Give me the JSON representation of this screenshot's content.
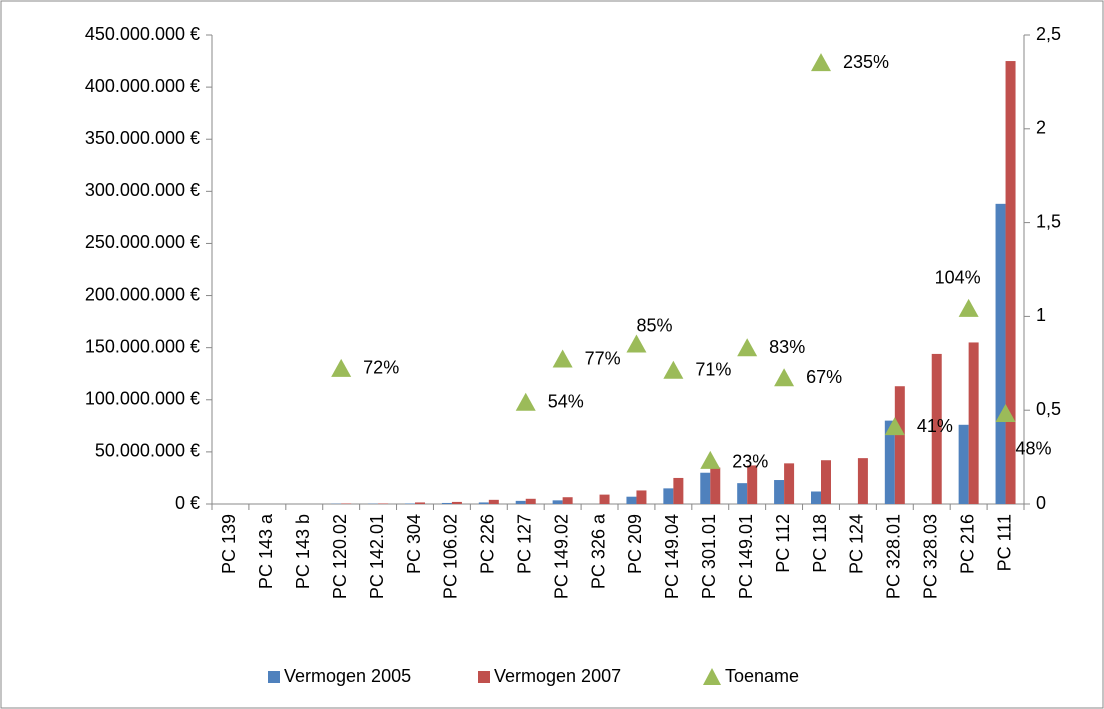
{
  "chart_data": {
    "type": "bar_line_combo",
    "categories": [
      "PC 139",
      "PC 143 a",
      "PC 143 b",
      "PC 120.02",
      "PC 142.01",
      "PC 304",
      "PC 106.02",
      "PC 226",
      "PC 127",
      "PC 149.02",
      "PC 326 a",
      "PC 209",
      "PC 149.04",
      "PC 301.01",
      "PC 149.01",
      "PC 112",
      "PC 118",
      "PC 124",
      "PC 328.01",
      "PC 328.03",
      "PC 216",
      "PC 111"
    ],
    "series": [
      {
        "name": "Vermogen 2005",
        "color": "#4f81bd",
        "type": "bar",
        "values": [
          0,
          0,
          0,
          300000,
          300000,
          500000,
          1000000,
          1500000,
          3000000,
          3500000,
          0,
          7000000,
          15000000,
          30000000,
          20000000,
          23000000,
          12000000,
          0,
          80000000,
          0,
          76000000,
          288000000
        ]
      },
      {
        "name": "Vermogen 2007",
        "color": "#c0504d",
        "type": "bar",
        "values": [
          0,
          0,
          0,
          500000,
          500000,
          1500000,
          2000000,
          4000000,
          5000000,
          6500000,
          9000000,
          13000000,
          25000000,
          35000000,
          37000000,
          39000000,
          42000000,
          44000000,
          113000000,
          144000000,
          155000000,
          425000000
        ]
      },
      {
        "name": "Toename",
        "color": "#9bbb59",
        "type": "marker",
        "axis": "y2",
        "values": [
          null,
          null,
          null,
          0.72,
          null,
          null,
          null,
          null,
          0.54,
          0.77,
          null,
          0.85,
          0.71,
          0.23,
          0.83,
          0.67,
          2.35,
          null,
          0.41,
          null,
          1.04,
          0.48
        ],
        "value_labels": [
          null,
          null,
          null,
          "72%",
          null,
          null,
          null,
          null,
          "54%",
          "77%",
          null,
          "85%",
          "71%",
          "23%",
          "83%",
          "67%",
          "235%",
          null,
          "41%",
          null,
          "104%",
          "48%"
        ]
      }
    ],
    "ylim": [
      0,
      450000000
    ],
    "yticks": [
      {
        "value": 0,
        "label": "0 €"
      },
      {
        "value": 50000000,
        "label": "50.000.000 €"
      },
      {
        "value": 100000000,
        "label": "100.000.000 €"
      },
      {
        "value": 150000000,
        "label": "150.000.000 €"
      },
      {
        "value": 200000000,
        "label": "200.000.000 €"
      },
      {
        "value": 250000000,
        "label": "250.000.000 €"
      },
      {
        "value": 300000000,
        "label": "300.000.000 €"
      },
      {
        "value": 350000000,
        "label": "350.000.000 €"
      },
      {
        "value": 400000000,
        "label": "400.000.000 €"
      },
      {
        "value": 450000000,
        "label": "450.000.000 €"
      }
    ],
    "y2lim": [
      0,
      2.5
    ],
    "y2ticks": [
      0,
      {
        "value": 0.5,
        "label": "0,5"
      },
      1,
      {
        "value": 1.5,
        "label": "1,5"
      },
      2,
      {
        "value": 2.5,
        "label": "2,5"
      }
    ],
    "grid": false,
    "legend": "bottom"
  }
}
